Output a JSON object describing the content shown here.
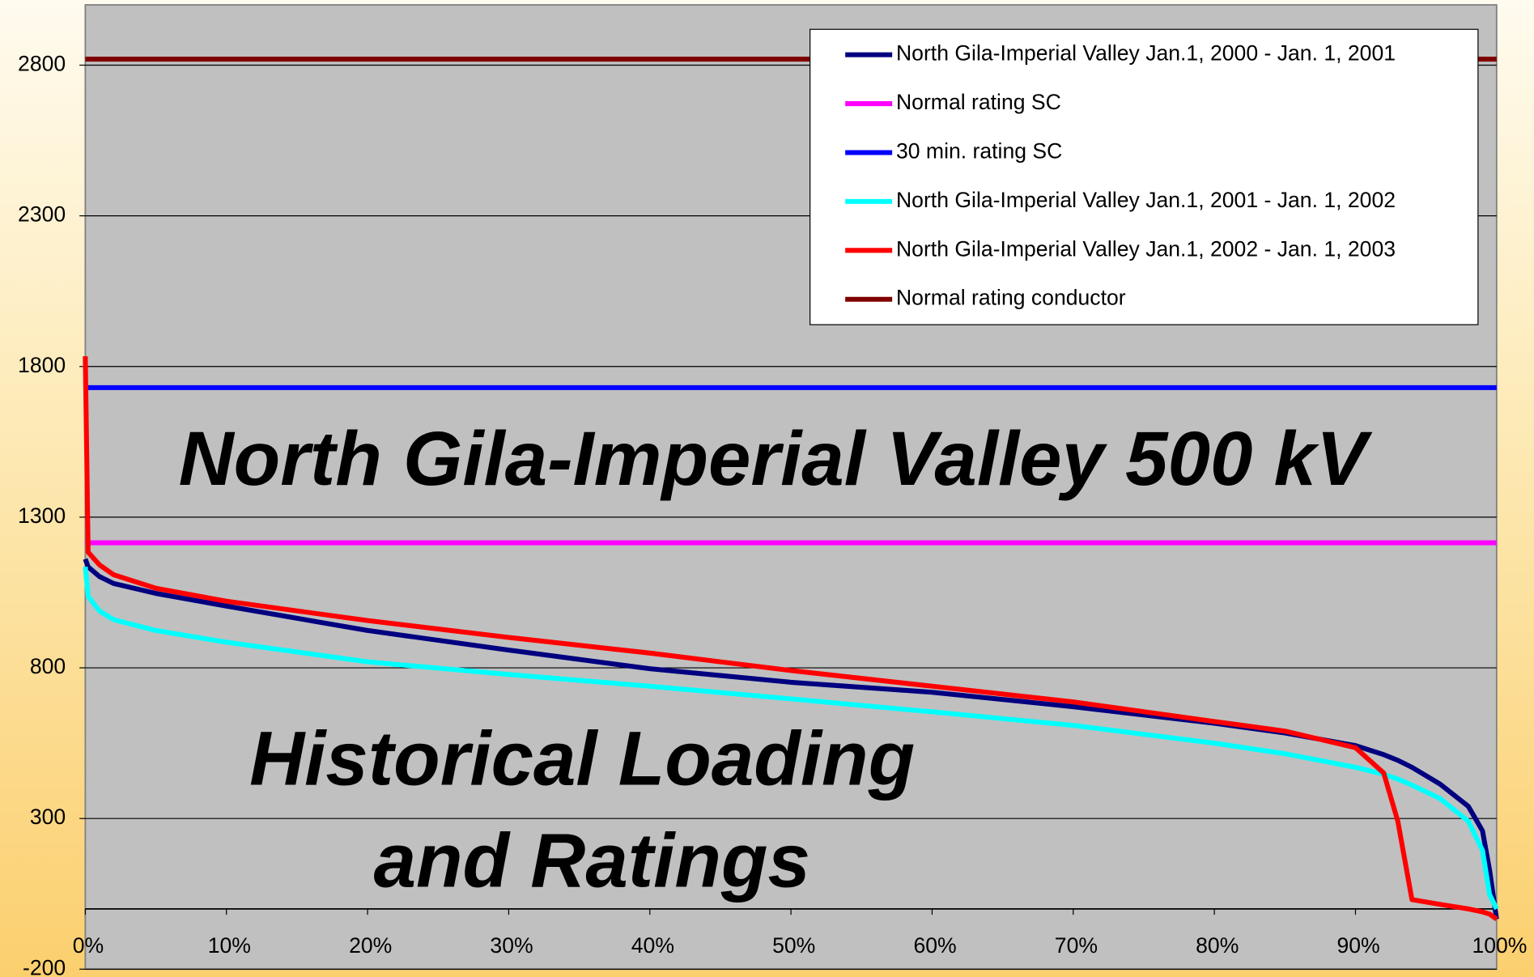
{
  "chart_data": {
    "type": "line",
    "annotations": [
      "North Gila-Imperial Valley 500 kV",
      "Historical Loading",
      "and Ratings"
    ],
    "x": [
      0,
      0.2,
      1,
      2,
      5,
      10,
      20,
      30,
      40,
      50,
      60,
      70,
      80,
      85,
      90,
      92,
      93,
      94,
      96,
      98,
      99,
      99.5,
      100
    ],
    "series": [
      {
        "name": "North Gila-Imperial Valley Jan.1, 2000 - Jan. 1, 2001",
        "color": "#000080",
        "values": [
          1161,
          1135,
          1103,
          1080,
          1047,
          1005,
          924,
          859,
          797,
          752,
          719,
          671,
          616,
          584,
          542,
          512,
          493,
          470,
          414,
          340,
          259,
          129,
          -34
        ]
      },
      {
        "name": "Normal rating SC",
        "color": "#ff00ff",
        "values": [
          1215,
          1215,
          1215,
          1215,
          1215,
          1215,
          1215,
          1215,
          1215,
          1215,
          1215,
          1215,
          1215,
          1215,
          1215,
          1215,
          1215,
          1215,
          1215,
          1215,
          1215,
          1215,
          1215
        ]
      },
      {
        "name": "30 min. rating SC",
        "color": "#0000ff",
        "values": [
          1730,
          1730,
          1730,
          1730,
          1730,
          1730,
          1730,
          1730,
          1730,
          1730,
          1730,
          1730,
          1730,
          1730,
          1730,
          1730,
          1730,
          1730,
          1730,
          1730,
          1730,
          1730,
          1730
        ]
      },
      {
        "name": "North Gila-Imperial Valley Jan.1, 2001 - Jan. 1, 2002",
        "color": "#00ffff",
        "values": [
          1135,
          1037,
          989,
          960,
          924,
          885,
          820,
          778,
          739,
          697,
          654,
          609,
          550,
          515,
          470,
          447,
          431,
          411,
          366,
          291,
          194,
          48,
          0
        ]
      },
      {
        "name": "North Gila-Imperial Valley Jan.1, 2002 - Jan. 1, 2003",
        "color": "#ff0000",
        "values": [
          1834,
          1184,
          1142,
          1109,
          1064,
          1021,
          957,
          901,
          849,
          791,
          739,
          687,
          622,
          590,
          535,
          451,
          291,
          31,
          15,
          0,
          -10,
          -17,
          -34
        ]
      },
      {
        "name": "Normal rating conductor",
        "color": "#800000",
        "values": [
          2820,
          2820,
          2820,
          2820,
          2820,
          2820,
          2820,
          2820,
          2820,
          2820,
          2820,
          2820,
          2820,
          2820,
          2820,
          2820,
          2820,
          2820,
          2820,
          2820,
          2820,
          2820,
          2820
        ]
      }
    ],
    "xlim": [
      0,
      100
    ],
    "xticks": [
      {
        "value": 0,
        "label": "0%"
      },
      {
        "value": 10,
        "label": "10%"
      },
      {
        "value": 20,
        "label": "20%"
      },
      {
        "value": 30,
        "label": "30%"
      },
      {
        "value": 40,
        "label": "40%"
      },
      {
        "value": 50,
        "label": "50%"
      },
      {
        "value": 60,
        "label": "60%"
      },
      {
        "value": 70,
        "label": "70%"
      },
      {
        "value": 80,
        "label": "80%"
      },
      {
        "value": 90,
        "label": "90%"
      },
      {
        "value": 100,
        "label": "100%"
      }
    ],
    "ylim": [
      -200,
      3000
    ],
    "yticks": [
      -200,
      300,
      800,
      1300,
      1800,
      2300,
      2800
    ],
    "grid": true,
    "legend": "top-right",
    "plot_color": "#c0c0c0"
  }
}
